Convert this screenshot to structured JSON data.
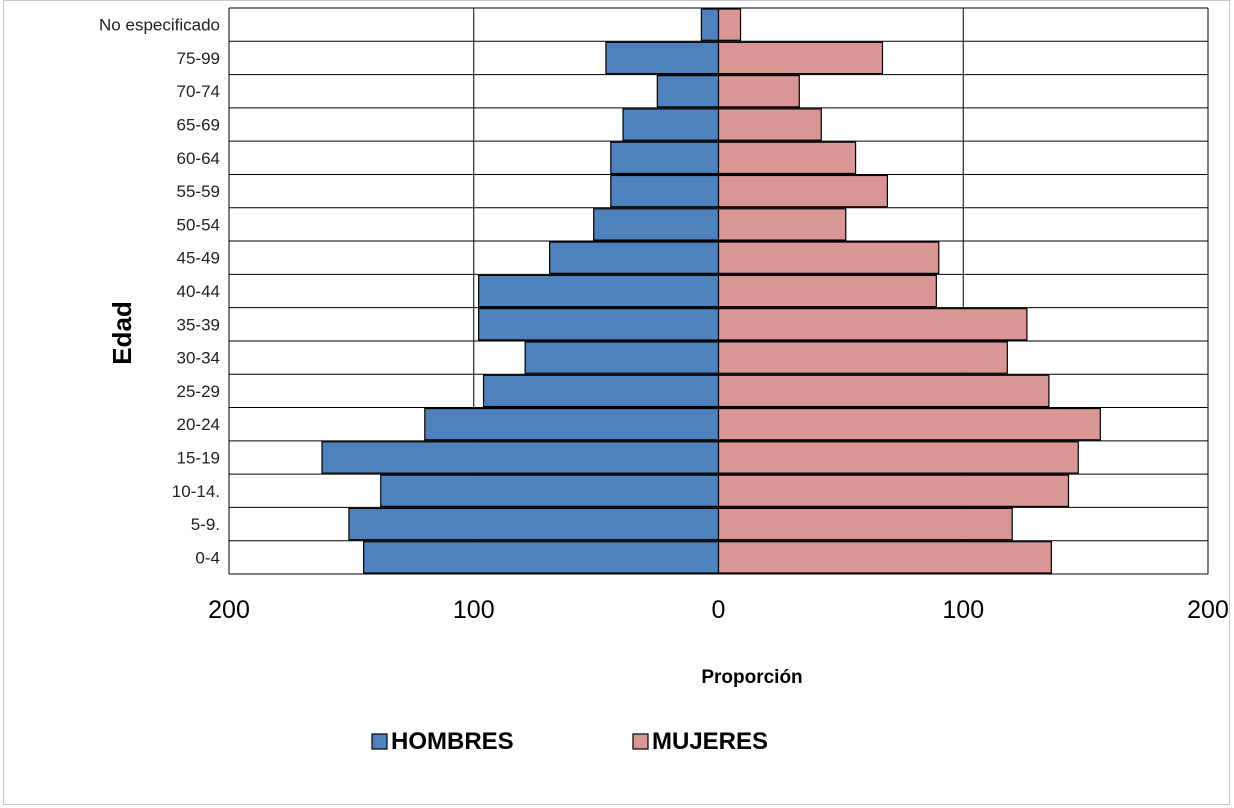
{
  "chart_data": {
    "type": "bar",
    "orientation": "horizontal",
    "subtype": "population-pyramid",
    "title": "",
    "xlabel": "Proporción",
    "ylabel": "Edad",
    "xlim": [
      -200,
      200
    ],
    "x_tick_values": [
      -200,
      -100,
      0,
      100,
      200
    ],
    "x_tick_labels": [
      "200",
      "100",
      "0",
      "100",
      "200"
    ],
    "grid": true,
    "legend_position": "bottom",
    "categories": [
      "0-4",
      "5-9.",
      "10-14.",
      "15-19",
      "20-24",
      "25-29",
      "30-34",
      "35-39",
      "40-44",
      "45-49",
      "50-54",
      "55-59",
      "60-64",
      "65-69",
      "70-74",
      "75-99",
      "No especificado"
    ],
    "series": [
      {
        "name": "HOMBRES",
        "color": "#4F81BD",
        "values": [
          145,
          151,
          138,
          162,
          120,
          96,
          79,
          98,
          98,
          69,
          51,
          44,
          44,
          39,
          25,
          46,
          7
        ]
      },
      {
        "name": "MUJERES",
        "color": "#D99694",
        "values": [
          136,
          120,
          143,
          147,
          156,
          135,
          118,
          126,
          89,
          90,
          52,
          69,
          56,
          42,
          33,
          67,
          9
        ]
      }
    ]
  }
}
